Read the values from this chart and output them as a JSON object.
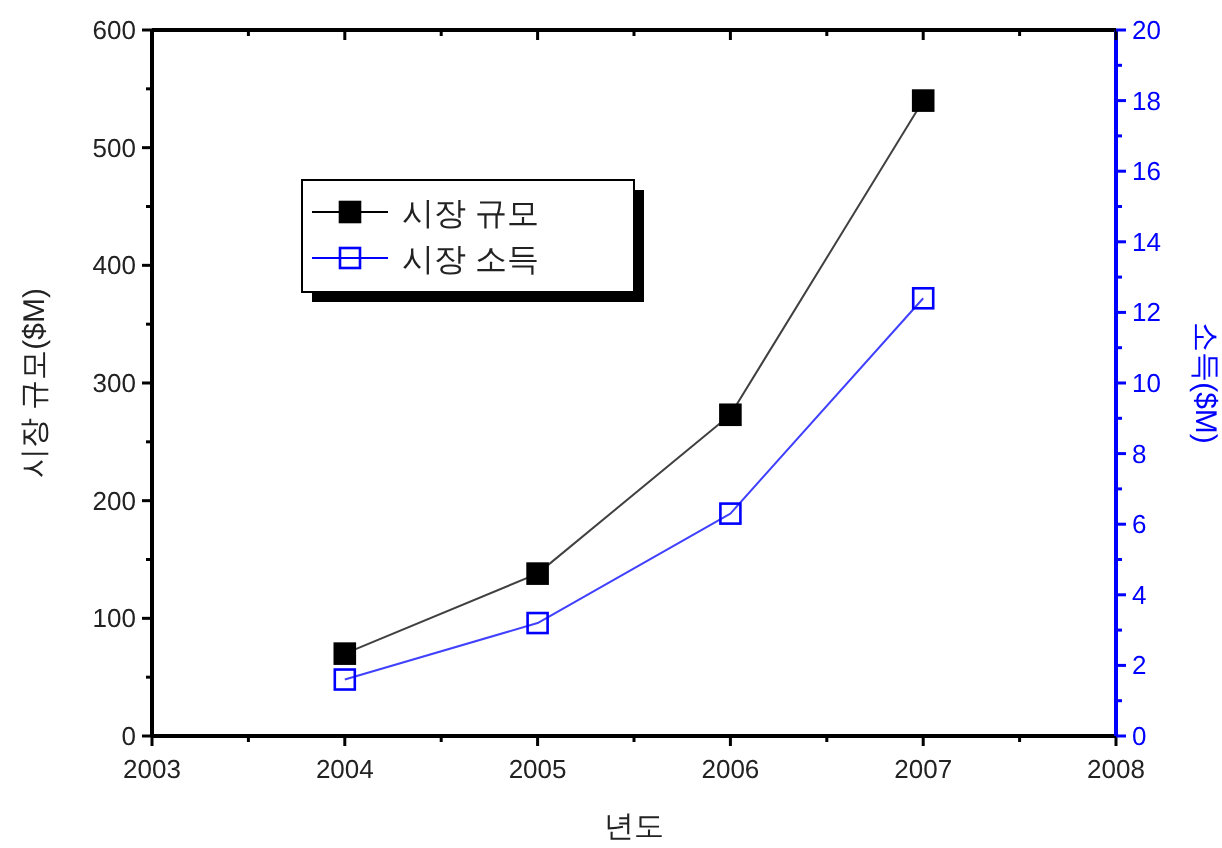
{
  "chart_data": {
    "type": "line",
    "xlabel": "년도",
    "ylabel": "시장 규모($M)",
    "y2label": "소득($M)",
    "x": [
      2004,
      2005,
      2006,
      2007
    ],
    "xlim": [
      2003,
      2008
    ],
    "xticks": [
      2003,
      {
        "value": 2003.5,
        "label": null
      },
      2004,
      {
        "value": 2004.5,
        "label": null
      },
      2005,
      {
        "value": 2005.5,
        "label": null
      },
      2006,
      {
        "value": 2006.5,
        "label": null
      },
      2007,
      {
        "value": 2007.5,
        "label": null
      },
      2008
    ],
    "ylim": [
      0,
      600
    ],
    "yticks": [
      0,
      {
        "value": 50,
        "label": null
      },
      100,
      {
        "value": 150,
        "label": null
      },
      200,
      {
        "value": 250,
        "label": null
      },
      300,
      {
        "value": 350,
        "label": null
      },
      400,
      {
        "value": 450,
        "label": null
      },
      500,
      {
        "value": 550,
        "label": null
      },
      600
    ],
    "y2lim": [
      0,
      20
    ],
    "y2ticks": [
      0,
      {
        "value": 1,
        "label": null
      },
      2,
      {
        "value": 3,
        "label": null
      },
      4,
      {
        "value": 5,
        "label": null
      },
      6,
      {
        "value": 7,
        "label": null
      },
      8,
      {
        "value": 9,
        "label": null
      },
      10,
      {
        "value": 11,
        "label": null
      },
      12,
      {
        "value": 13,
        "label": null
      },
      14,
      {
        "value": 15,
        "label": null
      },
      16,
      {
        "value": 17,
        "label": null
      },
      18,
      {
        "value": 19,
        "label": null
      },
      20
    ],
    "legend": "top left",
    "marker": "square",
    "line_style": "solid",
    "grid": false,
    "series": [
      {
        "name": "시장 규모",
        "color": "#000000",
        "values": [
          70,
          138,
          273,
          540
        ]
      },
      {
        "name": "시장 소득",
        "color": "#0000ff",
        "values": [
          1.6,
          3.2,
          6.3,
          12.4
        ],
        "axis": "y2"
      }
    ]
  }
}
